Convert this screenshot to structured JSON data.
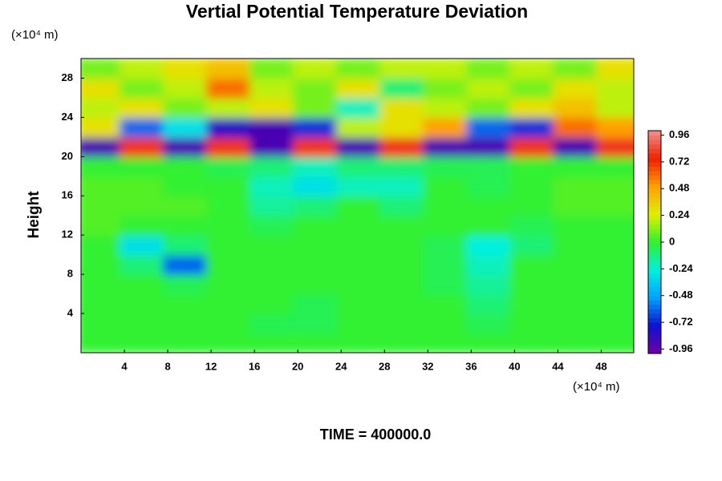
{
  "chart_data": {
    "type": "heatmap",
    "title": "Vertial Potential Temperature Deviation",
    "ylabel": "Height",
    "y_unit": "(×10⁴ m)",
    "x_unit": "(×10⁴ m)",
    "caption": "TIME = 400000.0",
    "xlim": [
      0,
      51
    ],
    "ylim": [
      0,
      30
    ],
    "xticks": [
      4,
      8,
      12,
      16,
      20,
      24,
      28,
      32,
      36,
      40,
      44,
      48
    ],
    "yticks": [
      4,
      8,
      12,
      16,
      20,
      24,
      28
    ],
    "clim": [
      -1,
      1
    ],
    "cticks": [
      -0.96,
      -0.72,
      -0.48,
      -0.24,
      0,
      0.24,
      0.48,
      0.72,
      0.96
    ],
    "colormap": [
      "#7000a0",
      "#1010d0",
      "#00a0ff",
      "#00f0e0",
      "#30f030",
      "#e0f000",
      "#ffa000",
      "#f02000",
      "#f09090"
    ],
    "x": [
      2,
      6,
      10,
      14,
      18,
      22,
      26,
      30,
      34,
      38,
      42,
      46,
      50
    ],
    "y": [
      1,
      3,
      5,
      7,
      9,
      11,
      13,
      15,
      17,
      19,
      21,
      23,
      25,
      27,
      29
    ],
    "z": [
      [
        0,
        0,
        0,
        0,
        0,
        0,
        0,
        0,
        0,
        0,
        0,
        0,
        0
      ],
      [
        0,
        0,
        0,
        0,
        -0.05,
        -0.05,
        0,
        0,
        0,
        -0.05,
        0,
        0,
        0
      ],
      [
        0,
        0,
        0,
        0,
        0,
        -0.05,
        0,
        0,
        0,
        -0.1,
        0,
        0,
        0
      ],
      [
        0,
        0,
        -0.05,
        0,
        0,
        0,
        0,
        0,
        -0.05,
        -0.15,
        0,
        0,
        0
      ],
      [
        0,
        -0.1,
        -0.6,
        0,
        0,
        0,
        0,
        0,
        -0.05,
        -0.2,
        0,
        0,
        0
      ],
      [
        0,
        -0.3,
        -0.1,
        0,
        0,
        0,
        0,
        0,
        -0.05,
        -0.25,
        -0.1,
        0,
        0
      ],
      [
        0.05,
        0,
        0,
        0,
        -0.05,
        0,
        0,
        0,
        0,
        0,
        -0.05,
        0,
        0
      ],
      [
        0.05,
        0.05,
        0.05,
        0,
        -0.15,
        -0.1,
        0,
        -0.1,
        0,
        0,
        0,
        0.05,
        0.05
      ],
      [
        0.05,
        0.05,
        0,
        0,
        -0.2,
        -0.3,
        -0.2,
        -0.2,
        0,
        -0.05,
        0,
        0.05,
        0.05
      ],
      [
        0,
        0,
        0,
        -0.05,
        -0.1,
        -0.2,
        -0.1,
        -0.1,
        -0.05,
        -0.05,
        0,
        0,
        0
      ],
      [
        -0.9,
        0.8,
        -0.9,
        0.8,
        -0.9,
        0.8,
        -0.9,
        0.8,
        -0.9,
        -0.9,
        0.8,
        -0.9,
        0.8
      ],
      [
        0.3,
        -0.6,
        -0.3,
        -0.8,
        -0.9,
        -0.7,
        0.2,
        0.3,
        0.5,
        -0.6,
        -0.7,
        0.6,
        0.5
      ],
      [
        0.2,
        0.3,
        0.1,
        0.2,
        0.3,
        0.1,
        -0.2,
        0.3,
        0.2,
        0.1,
        0.3,
        0.4,
        0.2
      ],
      [
        0.3,
        0.1,
        0.2,
        0.6,
        0.2,
        0.1,
        0.3,
        -0.1,
        0.1,
        0.2,
        0.1,
        0.3,
        0.2
      ],
      [
        0.1,
        0.2,
        0.3,
        0.4,
        0.1,
        0.2,
        0.1,
        0.2,
        0.2,
        0.1,
        0.2,
        0.1,
        0.3
      ]
    ]
  }
}
